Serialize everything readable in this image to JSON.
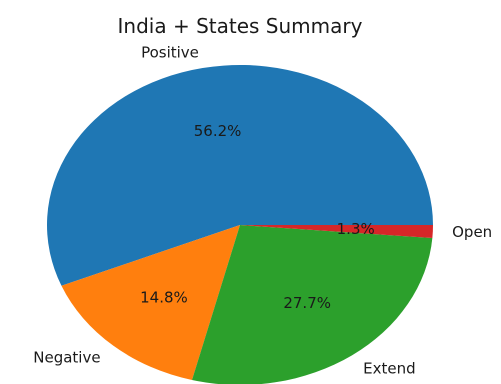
{
  "chart_data": {
    "type": "pie",
    "title": "India + States Summary",
    "slices": [
      {
        "label": "Positive",
        "value": 56.2,
        "pct_label": "56.2%",
        "color": "#1f77b4"
      },
      {
        "label": "Negative",
        "value": 14.8,
        "pct_label": "14.8%",
        "color": "#ff7f0e"
      },
      {
        "label": "Extend",
        "value": 27.7,
        "pct_label": "27.7%",
        "color": "#2ca02c"
      },
      {
        "label": "Open",
        "value": 1.3,
        "pct_label": "1.3%",
        "color": "#d62728"
      }
    ],
    "start_angle": 0,
    "direction": "counterclockwise"
  }
}
